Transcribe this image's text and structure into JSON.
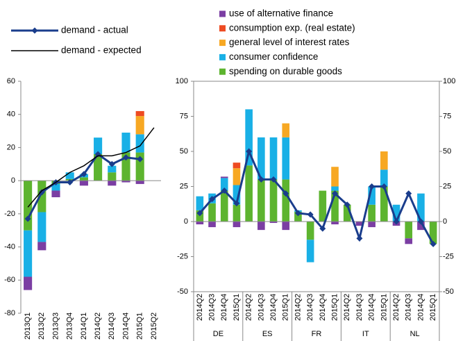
{
  "chart_data": [
    {
      "type": "stacked_bar",
      "categories": [
        "2013Q1",
        "2013Q2",
        "2013Q3",
        "2013Q4",
        "2014Q1",
        "2014Q2",
        "2014Q3",
        "2014Q4",
        "2015Q1",
        "2015Q2"
      ],
      "ylim": [
        -80,
        60
      ],
      "yticks": [
        -80,
        -60,
        -40,
        -20,
        0,
        20,
        40,
        60
      ],
      "series": [
        {
          "color": "#5db42f",
          "values": [
            -30,
            -19,
            -2,
            1,
            2,
            16,
            5,
            17,
            17,
            0
          ]
        },
        {
          "color": "#19b0e6",
          "values": [
            -28,
            -18,
            -4,
            4,
            2,
            10,
            4,
            12,
            11,
            0
          ]
        },
        {
          "color": "#f7a823",
          "values": [
            0,
            0,
            0,
            0,
            0,
            0,
            0,
            0,
            11,
            0
          ]
        },
        {
          "color": "#ee4b22",
          "values": [
            0,
            0,
            0,
            0,
            0,
            0,
            0,
            0,
            3,
            0
          ]
        },
        {
          "color": "#7b3ea3",
          "values": [
            -8,
            -5,
            -4,
            0,
            -3,
            0,
            -3,
            -1,
            -2,
            0
          ]
        }
      ],
      "lines": [
        {
          "name": "demand - actual",
          "color": "#1a3d8c",
          "markers": true,
          "values": [
            -23,
            -7,
            -1,
            -1,
            4,
            16,
            10,
            14,
            13,
            null
          ]
        },
        {
          "name": "demand - expected",
          "color": "#000000",
          "markers": false,
          "values": [
            -16,
            -6,
            -1,
            5,
            9,
            15,
            15,
            17,
            21,
            32
          ]
        }
      ]
    },
    {
      "type": "stacked_bar",
      "groups": [
        "DE",
        "ES",
        "FR",
        "IT",
        "NL"
      ],
      "categories": [
        "2014Q2",
        "2014Q3",
        "2014Q4",
        "2015Q1",
        "2014Q2",
        "2014Q3",
        "2014Q4",
        "2015Q1",
        "2014Q2",
        "2014Q3",
        "2014Q4",
        "2015Q1",
        "2014Q2",
        "2014Q3",
        "2014Q4",
        "2015Q1",
        "2014Q2",
        "2014Q3",
        "2014Q4",
        "2015Q1"
      ],
      "ylim": [
        -50,
        100
      ],
      "yticks": [
        -50,
        -25,
        0,
        25,
        50,
        75,
        100
      ],
      "series": [
        {
          "name": "spending on durable goods",
          "color": "#5db42f",
          "values": [
            8,
            13,
            22,
            12,
            40,
            30,
            30,
            30,
            7,
            -13,
            22,
            22,
            12,
            0,
            12,
            25,
            0,
            -12,
            0,
            -16
          ]
        },
        {
          "name": "consumer confidence",
          "color": "#19b0e6",
          "values": [
            10,
            7,
            9,
            14,
            40,
            30,
            30,
            30,
            1,
            -16,
            0,
            3,
            0,
            0,
            13,
            12,
            12,
            0,
            20,
            0
          ]
        },
        {
          "name": "general level of interest rates",
          "color": "#f7a823",
          "values": [
            0,
            0,
            0,
            12,
            0,
            0,
            0,
            10,
            0,
            0,
            0,
            14,
            0,
            0,
            0,
            13,
            0,
            0,
            0,
            0
          ]
        },
        {
          "name": "consumption exp. (real estate)",
          "color": "#ee4b22",
          "values": [
            0,
            0,
            0,
            4,
            0,
            0,
            0,
            0,
            0,
            0,
            0,
            0,
            0,
            0,
            0,
            0,
            0,
            0,
            0,
            0
          ]
        },
        {
          "name": "use of alternative finance",
          "color": "#7b3ea3",
          "values": [
            -2,
            -4,
            1,
            -4,
            0,
            -6,
            -1,
            -6,
            0,
            0,
            0,
            -2,
            0,
            -3,
            -4,
            0,
            -3,
            -4,
            -6,
            0
          ]
        }
      ],
      "lines": [
        {
          "color": "#1a3d8c",
          "markers": true,
          "values": [
            6,
            16,
            22,
            13,
            50,
            30,
            30,
            20,
            6,
            5,
            -5,
            20,
            12,
            -12,
            25,
            25,
            0,
            20,
            0,
            -16
          ]
        }
      ]
    }
  ]
}
